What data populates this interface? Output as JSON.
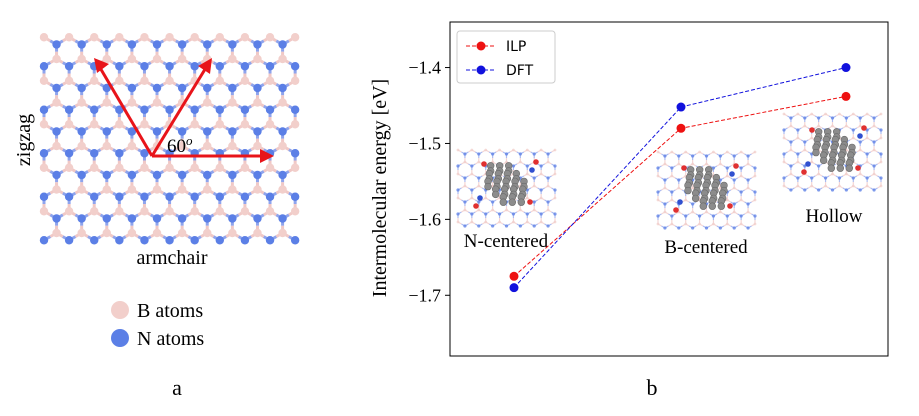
{
  "panel_a": {
    "label": "a",
    "axis_zigzag": "zigzag",
    "axis_armchair": "armchair",
    "angle_label": "60",
    "angle_sup": "o",
    "legend": [
      {
        "label": "B atoms",
        "color": "#f2cfcb"
      },
      {
        "label": "N atoms",
        "color": "#5b7fe6"
      }
    ],
    "bond_colors": {
      "B": "#f0c8c6",
      "N": "#8fa4ec"
    },
    "arrow_color": "#e8141a"
  },
  "panel_b": {
    "label": "b",
    "insets": [
      "N-centered",
      "B-centered",
      "Hollow"
    ]
  },
  "chart_data": {
    "type": "line",
    "title": "",
    "xlabel": "",
    "ylabel": "Intermolecular energy [eV]",
    "categories": [
      "N-centered",
      "B-centered",
      "Hollow"
    ],
    "ylim": [
      -1.78,
      -1.34
    ],
    "yticks": [
      -1.7,
      -1.6,
      -1.5,
      -1.4
    ],
    "ytick_labels": [
      "−1.7",
      "−1.6",
      "−1.5",
      "−1.4"
    ],
    "legend_position": "top-left",
    "series": [
      {
        "name": "ILP",
        "color": "#ee1111",
        "values": [
          -1.675,
          -1.48,
          -1.438
        ]
      },
      {
        "name": "DFT",
        "color": "#1111dd",
        "values": [
          -1.69,
          -1.452,
          -1.4
        ]
      }
    ]
  }
}
